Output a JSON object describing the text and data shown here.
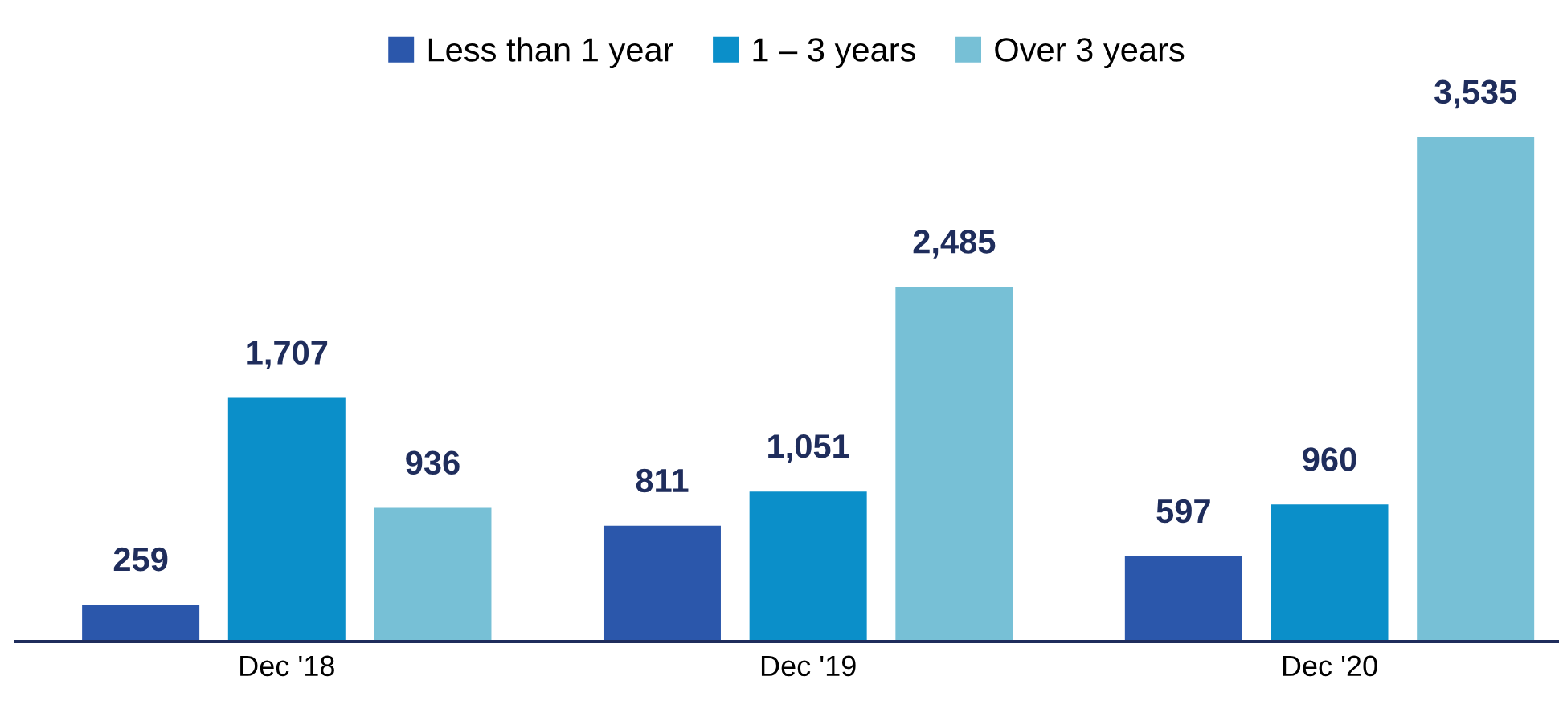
{
  "chart_data": {
    "type": "bar",
    "categories": [
      "Dec '18",
      "Dec '19",
      "Dec '20"
    ],
    "series": [
      {
        "name": "Less than 1 year",
        "color": "#2b57ab",
        "values": [
          259,
          811,
          597
        ],
        "value_labels": [
          "259",
          "811",
          "597"
        ]
      },
      {
        "name": "1 – 3 years",
        "color": "#0b8fc9",
        "values": [
          1707,
          1051,
          960
        ],
        "value_labels": [
          "1,707",
          "1,051",
          "960"
        ]
      },
      {
        "name": "Over 3 years",
        "color": "#77c0d6",
        "values": [
          936,
          2485,
          3535
        ],
        "value_labels": [
          "936",
          "2,485",
          "3,535"
        ]
      }
    ],
    "legend": "top",
    "grid": false
  }
}
